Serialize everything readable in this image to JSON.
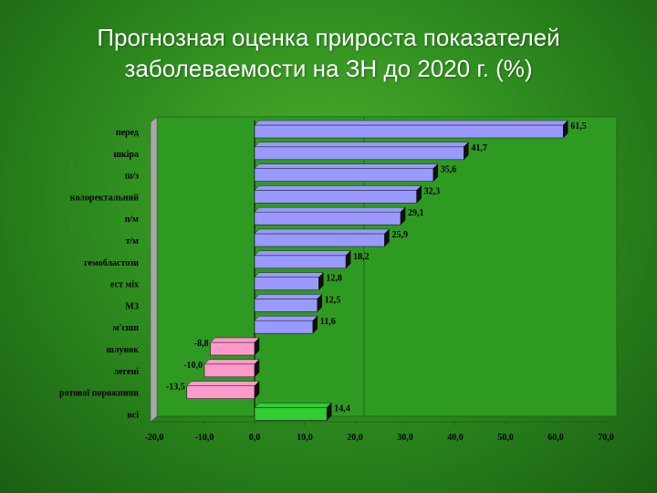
{
  "title_line1": "Прогнозная оценка прироста показателей",
  "title_line2": "заболеваемости на ЗН  до 2020 г. (%)",
  "colors": {
    "positive": "#9999ff",
    "negative": "#ff99cc",
    "total": "#33cc33",
    "background": "#3a9a28"
  },
  "chart_data": {
    "type": "bar",
    "orientation": "horizontal",
    "categories": [
      "перед",
      "шкіра",
      "ш/з",
      "колоректальний",
      "п/м",
      "т/м",
      "гемобластози",
      "ест міх",
      "МЗ",
      "м'сшп",
      "шлунок",
      "легені",
      "ротової порожнини",
      "всі"
    ],
    "values": [
      61.5,
      41.7,
      35.6,
      32.3,
      29.1,
      25.9,
      18.2,
      12.8,
      12.5,
      11.6,
      -8.8,
      -10.0,
      -13.5,
      14.4
    ],
    "value_labels": [
      "61,5",
      "41,7",
      "35,6",
      "32,3",
      "29,1",
      "25,9",
      "18,2",
      "12,8",
      "12,5",
      "11,6",
      "-8,8",
      "-10,0",
      "-13,5",
      "14,4"
    ],
    "xlim": [
      -20,
      70
    ],
    "xticks": [
      -20,
      -10,
      0,
      10,
      20,
      30,
      40,
      50,
      60,
      70
    ],
    "xtick_labels": [
      "-20,0",
      "-10,0",
      "0,0",
      "10,0",
      "20,0",
      "30,0",
      "40,0",
      "50,0",
      "60,0",
      "70,0"
    ],
    "grid": false,
    "legend": false
  }
}
